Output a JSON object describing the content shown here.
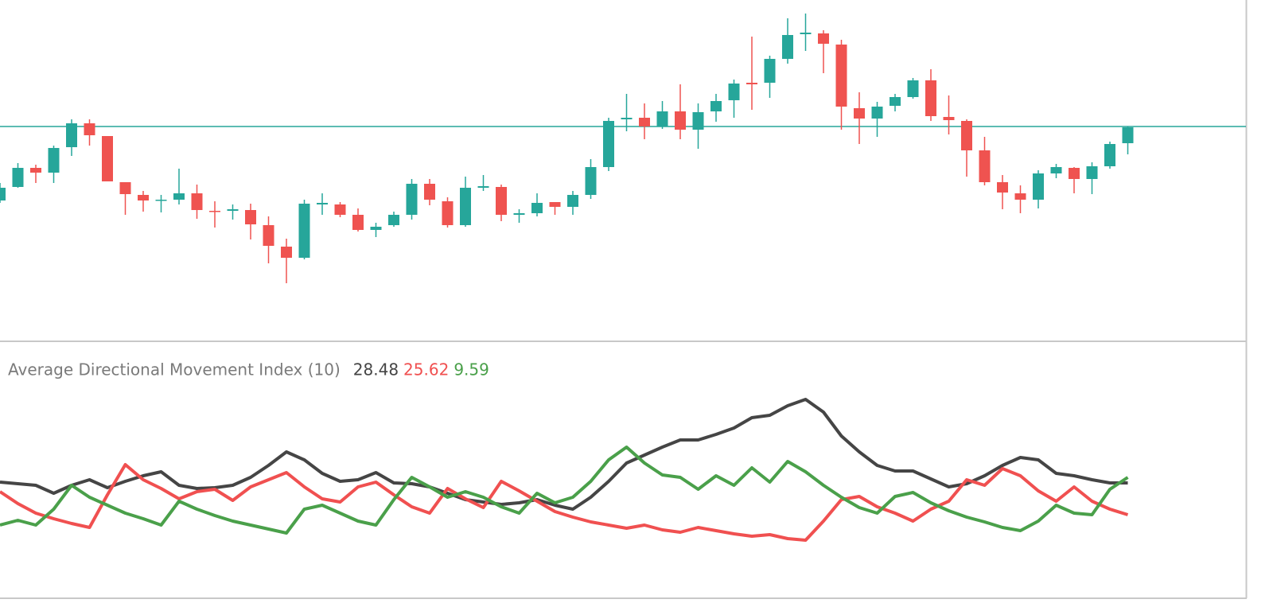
{
  "chart_data": [
    {
      "type": "candlestick",
      "up_color": "#26a69a",
      "down_color": "#ef5350",
      "open": [
        178,
        195,
        219,
        213,
        245,
        275,
        259,
        201,
        185,
        178,
        179,
        187,
        165,
        165,
        166,
        147,
        120,
        106,
        173,
        173,
        160,
        141,
        147,
        160,
        199,
        177,
        147,
        194,
        195,
        160,
        162,
        176,
        170,
        185,
        220,
        280,
        282,
        271,
        290,
        267,
        290,
        304,
        326,
        326,
        356,
        387,
        388,
        374,
        294,
        281,
        297,
        308,
        329,
        283,
        278,
        241,
        201,
        187,
        179,
        212,
        219,
        205,
        221,
        250
      ],
      "high": [
        200,
        225,
        223,
        247,
        280,
        280,
        259,
        201,
        190,
        185,
        218,
        198,
        177,
        173,
        174,
        158,
        130,
        179,
        187,
        176,
        168,
        150,
        164,
        205,
        205,
        182,
        208,
        210,
        198,
        167,
        187,
        176,
        190,
        230,
        282,
        312,
        300,
        303,
        324,
        300,
        312,
        330,
        384,
        360,
        407,
        413,
        392,
        380,
        314,
        302,
        312,
        332,
        343,
        310,
        280,
        258,
        210,
        197,
        216,
        224,
        220,
        226,
        252,
        271
      ],
      "low": [
        175,
        194,
        200,
        200,
        234,
        247,
        202,
        160,
        164,
        163,
        173,
        155,
        144,
        154,
        129,
        99,
        74,
        104,
        160,
        157,
        139,
        132,
        145,
        154,
        172,
        144,
        145,
        190,
        152,
        150,
        158,
        160,
        160,
        180,
        215,
        265,
        255,
        268,
        255,
        243,
        277,
        282,
        292,
        307,
        350,
        366,
        338,
        267,
        249,
        258,
        290,
        306,
        278,
        261,
        208,
        197,
        167,
        162,
        168,
        206,
        187,
        186,
        218,
        236
      ],
      "close": [
        194,
        219,
        213,
        244,
        275,
        260,
        202,
        186,
        178,
        179,
        187,
        166,
        164,
        167,
        148,
        121,
        106,
        174,
        175,
        160,
        141,
        145,
        160,
        199,
        179,
        147,
        194,
        196,
        160,
        162,
        175,
        170,
        185,
        220,
        278,
        282,
        271,
        290,
        267,
        289,
        303,
        325,
        324,
        356,
        386,
        389,
        375,
        296,
        281,
        296,
        308,
        329,
        284,
        279,
        241,
        201,
        188,
        179,
        212,
        220,
        205,
        221,
        249,
        270
      ],
      "price_line": 271,
      "price_line_color": "#26a69a",
      "ylim": [
        0,
        430
      ]
    },
    {
      "type": "line",
      "title": "Average Directional Movement Index (10)",
      "series": [
        {
          "color": "#454545",
          "legend_value": 28.48,
          "values": [
            146,
            144,
            142,
            132,
            142,
            149,
            139,
            147,
            154,
            159,
            142,
            138,
            139,
            142,
            152,
            167,
            184,
            174,
            157,
            147,
            149,
            158,
            145,
            144,
            140,
            132,
            124,
            121,
            118,
            120,
            124,
            117,
            112,
            127,
            147,
            170,
            180,
            190,
            199,
            199,
            206,
            214,
            227,
            230,
            242,
            250,
            234,
            204,
            184,
            167,
            160,
            160,
            150,
            140,
            144,
            154,
            167,
            177,
            174,
            157,
            154,
            149,
            145,
            145
          ]
        },
        {
          "color": "#f05050",
          "legend_value": 25.62,
          "values": [
            134,
            119,
            107,
            100,
            94,
            89,
            130,
            168,
            149,
            138,
            125,
            134,
            137,
            123,
            140,
            149,
            158,
            140,
            125,
            121,
            140,
            146,
            130,
            115,
            107,
            138,
            125,
            114,
            147,
            135,
            122,
            109,
            102,
            96,
            92,
            88,
            92,
            86,
            83,
            89,
            85,
            81,
            78,
            80,
            75,
            73,
            97,
            124,
            128,
            115,
            107,
            97,
            112,
            122,
            149,
            142,
            163,
            154,
            135,
            122,
            140,
            122,
            112,
            105
          ]
        },
        {
          "color": "#4aa04a",
          "legend_value": 9.59,
          "values": [
            92,
            98,
            92,
            112,
            142,
            127,
            117,
            107,
            100,
            92,
            122,
            112,
            104,
            97,
            92,
            87,
            82,
            112,
            117,
            107,
            97,
            92,
            124,
            152,
            140,
            127,
            134,
            127,
            115,
            107,
            132,
            120,
            127,
            147,
            174,
            190,
            170,
            155,
            152,
            137,
            154,
            142,
            164,
            146,
            172,
            159,
            142,
            127,
            114,
            107,
            128,
            133,
            120,
            110,
            102,
            96,
            89,
            85,
            97,
            117,
            107,
            105,
            137,
            152
          ]
        }
      ],
      "ylim": [
        0,
        322
      ]
    }
  ]
}
